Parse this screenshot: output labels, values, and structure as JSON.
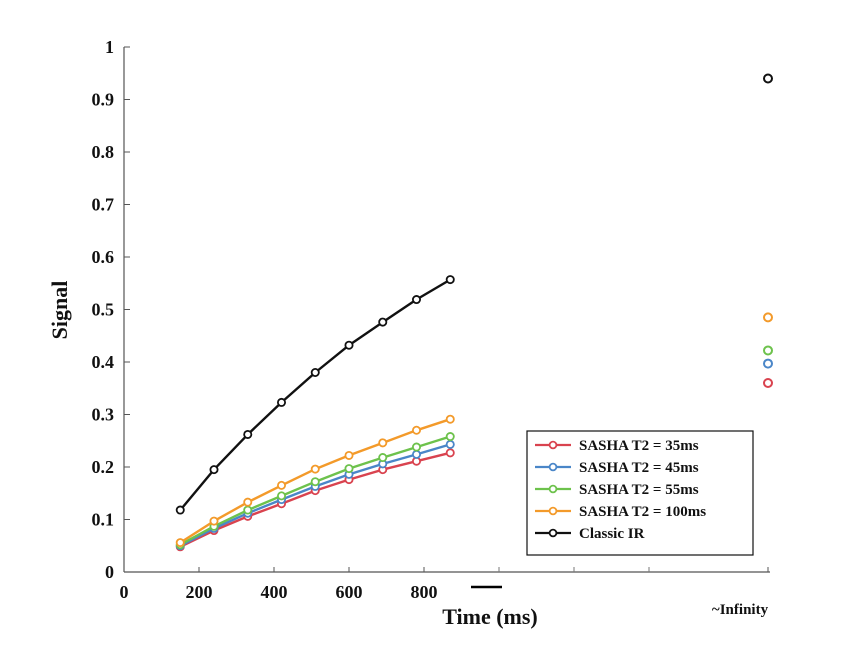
{
  "chart_data": {
    "type": "line",
    "xlabel": "Time (ms)",
    "ylabel": "Signal",
    "xlim": [
      0,
      1725
    ],
    "ylim": [
      0,
      1
    ],
    "xticks": [
      {
        "value": 0,
        "label": "0"
      },
      {
        "value": 200,
        "label": "200"
      },
      {
        "value": 400,
        "label": "400"
      },
      {
        "value": 600,
        "label": "600"
      },
      {
        "value": 800,
        "label": "800"
      }
    ],
    "extra_xtick_marks": [
      1000,
      1200,
      1400
    ],
    "yticks": [
      {
        "value": 0,
        "label": "0"
      },
      {
        "value": 0.1,
        "label": "0.1"
      },
      {
        "value": 0.2,
        "label": "0.2"
      },
      {
        "value": 0.3,
        "label": "0.3"
      },
      {
        "value": 0.4,
        "label": "0.4"
      },
      {
        "value": 0.5,
        "label": "0.5"
      },
      {
        "value": 0.6,
        "label": "0.6"
      },
      {
        "value": 0.7,
        "label": "0.7"
      },
      {
        "value": 0.8,
        "label": "0.8"
      },
      {
        "value": 0.9,
        "label": "0.9"
      },
      {
        "value": 1,
        "label": "1"
      }
    ],
    "infinity_label": "~Infinity",
    "grid": false,
    "legend_position": "bottom-right",
    "x": [
      150,
      240,
      330,
      420,
      510,
      600,
      690,
      780,
      870
    ],
    "series": [
      {
        "name": "SASHA T2 = 35ms",
        "color": "#d9434f",
        "values": [
          0.048,
          0.079,
          0.106,
          0.13,
          0.155,
          0.176,
          0.195,
          0.211,
          0.227
        ],
        "infinity_value": 0.36
      },
      {
        "name": "SASHA T2 = 45ms",
        "color": "#4a86c8",
        "values": [
          0.05,
          0.083,
          0.112,
          0.138,
          0.163,
          0.186,
          0.206,
          0.224,
          0.243
        ],
        "infinity_value": 0.397
      },
      {
        "name": "SASHA T2 = 55ms",
        "color": "#6dc24c",
        "values": [
          0.052,
          0.087,
          0.118,
          0.145,
          0.172,
          0.197,
          0.218,
          0.238,
          0.258
        ],
        "infinity_value": 0.422
      },
      {
        "name": "SASHA T2 = 100ms",
        "color": "#f39a2a",
        "values": [
          0.056,
          0.097,
          0.133,
          0.165,
          0.196,
          0.222,
          0.246,
          0.27,
          0.291
        ],
        "infinity_value": 0.485
      },
      {
        "name": "Classic IR",
        "color": "#111111",
        "values": [
          0.118,
          0.195,
          0.262,
          0.323,
          0.38,
          0.432,
          0.476,
          0.519,
          0.557
        ],
        "infinity_value": 0.94
      }
    ]
  }
}
